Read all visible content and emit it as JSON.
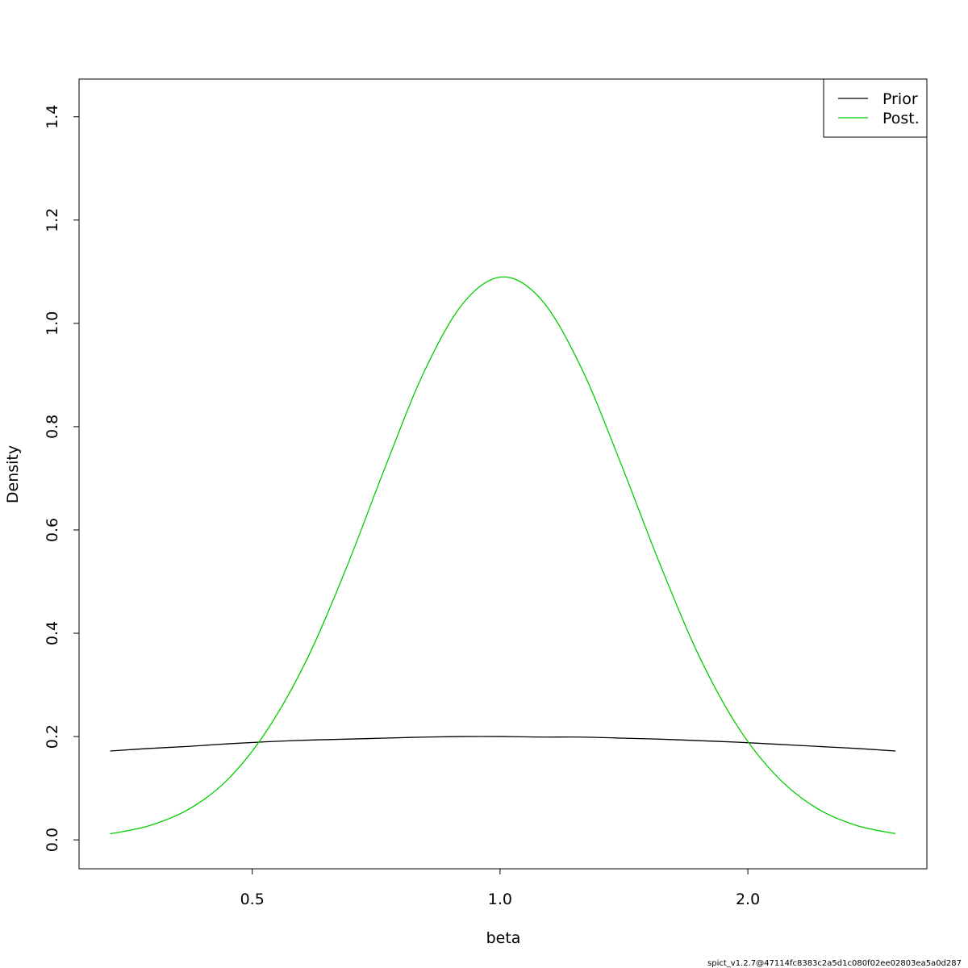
{
  "chart_data": {
    "type": "line",
    "xlabel": "beta",
    "ylabel": "Density",
    "x": [
      0.336,
      0.375,
      0.419,
      0.467,
      0.521,
      0.582,
      0.65,
      0.725,
      0.809,
      0.903,
      1.008,
      1.125,
      1.256,
      1.401,
      1.564,
      1.746,
      1.948,
      2.175,
      2.427,
      2.709,
      3.023
    ],
    "series": [
      {
        "name": "Prior",
        "color": "#000000",
        "values": [
          0.172,
          0.177,
          0.181,
          0.186,
          0.19,
          0.193,
          0.195,
          0.197,
          0.199,
          0.2,
          0.2,
          0.199,
          0.199,
          0.197,
          0.195,
          0.192,
          0.189,
          0.185,
          0.181,
          0.177,
          0.172
        ]
      },
      {
        "name": "Post.",
        "color": "#00cd00",
        "values": [
          0.0116,
          0.0276,
          0.0596,
          0.117,
          0.212,
          0.348,
          0.525,
          0.721,
          0.907,
          1.04,
          1.09,
          1.044,
          0.913,
          0.73,
          0.534,
          0.355,
          0.217,
          0.121,
          0.061,
          0.028,
          0.012
        ]
      }
    ],
    "xlog": true,
    "xlim": [
      0.308,
      3.3
    ],
    "xticks": [
      0.5,
      {
        "value": 1,
        "label": "1.0"
      },
      {
        "value": 2,
        "label": "2.0"
      }
    ],
    "ylim": [
      -0.056,
      1.473
    ],
    "yticks": [
      {
        "value": 0,
        "label": "0.0"
      },
      0.2,
      0.4,
      0.6,
      0.8,
      {
        "value": 1,
        "label": "1.0"
      },
      1.2,
      1.4
    ],
    "legend": "top-right",
    "footnote": "spict_v1.2.7@47114fc8383c2a5d1c080f02ee02803ea5a0d287"
  }
}
